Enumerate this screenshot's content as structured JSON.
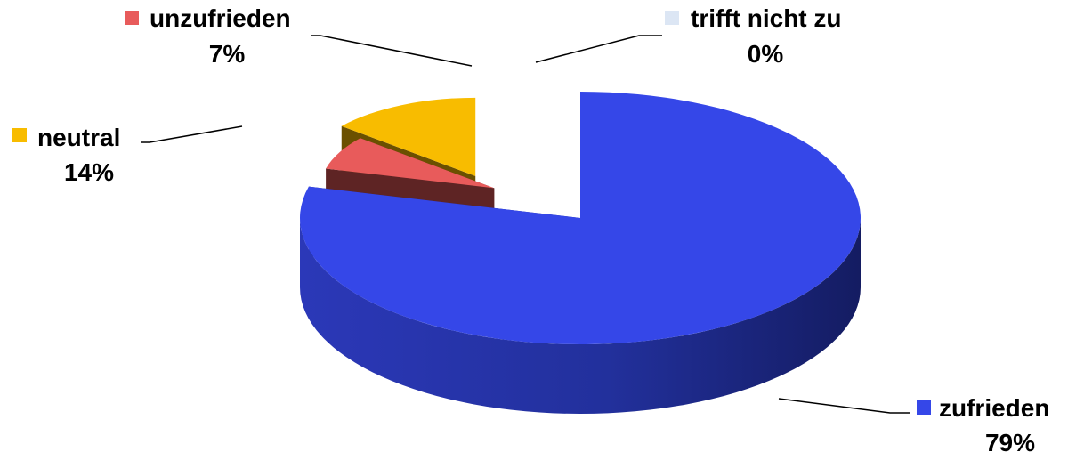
{
  "chart_data": {
    "type": "pie",
    "style": "3d-exploded",
    "title": "",
    "slices": [
      {
        "label": "zufrieden",
        "value": 79,
        "display": "79%",
        "color": "#3547e8"
      },
      {
        "label": "trifft nicht zu",
        "value": 0,
        "display": "0%",
        "color": "#dce6f4"
      },
      {
        "label": "unzufrieden",
        "value": 7,
        "display": "7%",
        "color": "#e85b5b"
      },
      {
        "label": "neutral",
        "value": 14,
        "display": "14%",
        "color": "#f8bc00"
      }
    ],
    "legend": "labels-beside-slices"
  }
}
